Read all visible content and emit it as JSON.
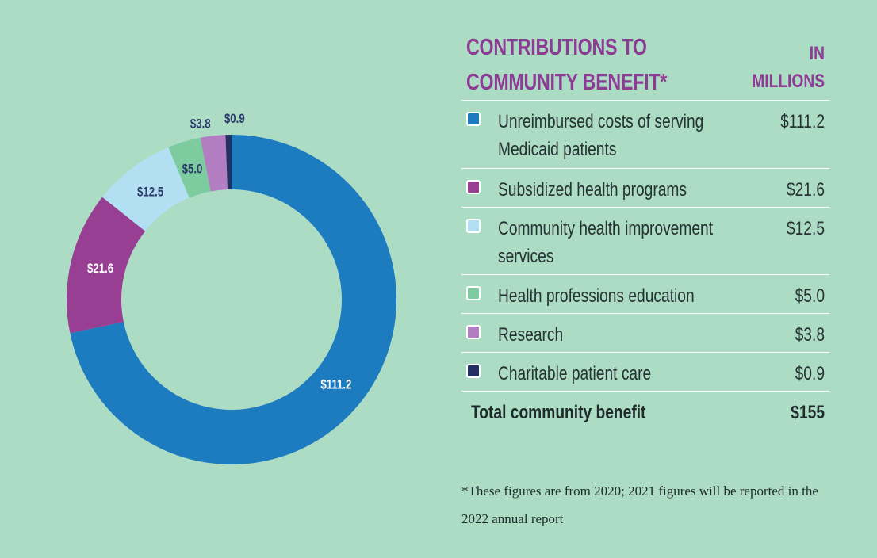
{
  "table": {
    "title": "CONTRIBUTIONS TO COMMUNITY BENEFIT*",
    "unit_label": "IN MILLIONS",
    "rows": [
      {
        "label": "Unreimbursed costs of serving Medicaid patients",
        "value": "$111.2"
      },
      {
        "label": "Subsidized health programs",
        "value": "$21.6"
      },
      {
        "label": "Community health improvement services",
        "value": "$12.5"
      },
      {
        "label": "Health professions education",
        "value": "$5.0"
      },
      {
        "label": "Research",
        "value": "$3.8"
      },
      {
        "label": "Charitable patient care",
        "value": "$0.9"
      }
    ],
    "total": {
      "label": "Total community benefit",
      "value": "$155"
    }
  },
  "footnote": "*These figures are from 2020; 2021 figures will be reported in the 2022 annual report",
  "colors": {
    "background": "#acdcc4",
    "accent": "#8e3b96"
  },
  "chart_data": {
    "type": "pie",
    "donut": true,
    "title": "",
    "categories": [
      "Unreimbursed costs of serving Medicaid patients",
      "Subsidized health programs",
      "Community health improvement services",
      "Health professions education",
      "Research",
      "Charitable patient care"
    ],
    "values": [
      111.2,
      21.6,
      12.5,
      5.0,
      3.8,
      0.9
    ],
    "data_labels": [
      "$111.2",
      "$21.6",
      "$12.5",
      "$5.0",
      "$3.8",
      "$0.9"
    ],
    "colors": [
      "#1d7bbf",
      "#983e93",
      "#b2dff2",
      "#7dcc9f",
      "#b27ec1",
      "#243063"
    ],
    "label_colors": [
      "#ffffff",
      "#ffffff",
      "#2b3a6b",
      "#2b3a6b",
      "#2b3a6b",
      "#2b3a6b"
    ]
  }
}
